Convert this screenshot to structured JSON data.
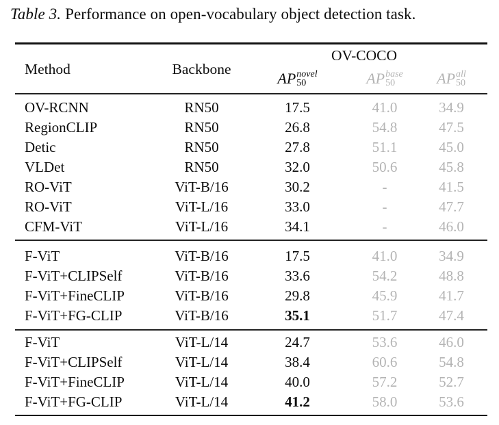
{
  "caption": {
    "label": "Table 3.",
    "text": "Performance on open-vocabulary object detection task."
  },
  "colors": {
    "text": "#0d0d0d",
    "muted": "#b4b4b4",
    "rule": "#111111"
  },
  "header": {
    "method": "Method",
    "backbone": "Backbone",
    "group": "OV-COCO",
    "metrics": [
      {
        "symbol": "AP",
        "subscript": "50",
        "superscript": "novel",
        "emphasis": "primary"
      },
      {
        "symbol": "AP",
        "subscript": "50",
        "superscript": "base",
        "emphasis": "muted"
      },
      {
        "symbol": "AP",
        "subscript": "50",
        "superscript": "all",
        "emphasis": "muted"
      }
    ]
  },
  "table": {
    "columns": [
      "Method",
      "Backbone",
      "AP50 novel",
      "AP50 base",
      "AP50 all"
    ],
    "sections": [
      {
        "rows": [
          {
            "method": "OV-RCNN",
            "backbone": "RN50",
            "novel": "17.5",
            "base": "41.0",
            "all": "34.9"
          },
          {
            "method": "RegionCLIP",
            "backbone": "RN50",
            "novel": "26.8",
            "base": "54.8",
            "all": "47.5"
          },
          {
            "method": "Detic",
            "backbone": "RN50",
            "novel": "27.8",
            "base": "51.1",
            "all": "45.0"
          },
          {
            "method": "VLDet",
            "backbone": "RN50",
            "novel": "32.0",
            "base": "50.6",
            "all": "45.8"
          },
          {
            "method": "RO-ViT",
            "backbone": "ViT-B/16",
            "novel": "30.2",
            "base": "-",
            "all": "41.5"
          },
          {
            "method": "RO-ViT",
            "backbone": "ViT-L/16",
            "novel": "33.0",
            "base": "-",
            "all": "47.7"
          },
          {
            "method": "CFM-ViT",
            "backbone": "ViT-L/16",
            "novel": "34.1",
            "base": "-",
            "all": "46.0"
          }
        ]
      },
      {
        "rows": [
          {
            "method": "F-ViT",
            "backbone": "ViT-B/16",
            "novel": "17.5",
            "base": "41.0",
            "all": "34.9"
          },
          {
            "method": "F-ViT+CLIPSelf",
            "backbone": "ViT-B/16",
            "novel": "33.6",
            "base": "54.2",
            "all": "48.8"
          },
          {
            "method": "F-ViT+FineCLIP",
            "backbone": "ViT-B/16",
            "novel": "29.8",
            "base": "45.9",
            "all": "41.7"
          },
          {
            "method": "F-ViT+FG-CLIP",
            "backbone": "ViT-B/16",
            "novel": "35.1",
            "base": "51.7",
            "all": "47.4"
          }
        ]
      },
      {
        "rows": [
          {
            "method": "F-ViT",
            "backbone": "ViT-L/14",
            "novel": "24.7",
            "base": "53.6",
            "all": "46.0"
          },
          {
            "method": "F-ViT+CLIPSelf",
            "backbone": "ViT-L/14",
            "novel": "38.4",
            "base": "60.6",
            "all": "54.8"
          },
          {
            "method": "F-ViT+FineCLIP",
            "backbone": "ViT-L/14",
            "novel": "40.0",
            "base": "57.2",
            "all": "52.7"
          },
          {
            "method": "F-ViT+FG-CLIP",
            "backbone": "ViT-L/14",
            "novel": "41.2",
            "base": "58.0",
            "all": "53.6"
          }
        ]
      }
    ]
  }
}
